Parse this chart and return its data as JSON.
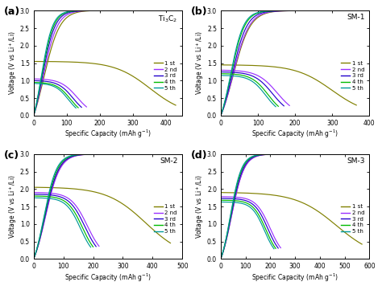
{
  "panels": [
    {
      "label": "(a)",
      "title": "Ti$_3$C$_2$",
      "xlim": [
        0,
        450
      ],
      "xticks": [
        0,
        100,
        200,
        300,
        400
      ],
      "cycles": [
        {
          "discharge_cap": 430,
          "discharge_v0": 1.55,
          "discharge_k": 8.0,
          "charge_cap": 170,
          "charge_k": 7.0
        },
        {
          "discharge_cap": 160,
          "discharge_v0": 1.05,
          "discharge_k": 6.5,
          "charge_cap": 160,
          "charge_k": 7.5
        },
        {
          "discharge_cap": 145,
          "discharge_v0": 1.0,
          "discharge_k": 6.5,
          "charge_cap": 145,
          "charge_k": 7.5
        },
        {
          "discharge_cap": 135,
          "discharge_v0": 0.95,
          "discharge_k": 6.5,
          "charge_cap": 135,
          "charge_k": 7.5
        },
        {
          "discharge_cap": 128,
          "discharge_v0": 0.92,
          "discharge_k": 6.5,
          "charge_cap": 128,
          "charge_k": 7.5
        }
      ]
    },
    {
      "label": "(b)",
      "title": "SM-1",
      "xlim": [
        0,
        400
      ],
      "xticks": [
        0,
        100,
        200,
        300,
        400
      ],
      "cycles": [
        {
          "discharge_cap": 365,
          "discharge_v0": 1.45,
          "discharge_k": 7.5,
          "charge_cap": 185,
          "charge_k": 8.0
        },
        {
          "discharge_cap": 185,
          "discharge_v0": 1.3,
          "discharge_k": 7.0,
          "charge_cap": 185,
          "charge_k": 8.5
        },
        {
          "discharge_cap": 170,
          "discharge_v0": 1.25,
          "discharge_k": 7.0,
          "charge_cap": 170,
          "charge_k": 8.5
        },
        {
          "discharge_cap": 155,
          "discharge_v0": 1.2,
          "discharge_k": 7.0,
          "charge_cap": 155,
          "charge_k": 8.5
        },
        {
          "discharge_cap": 148,
          "discharge_v0": 1.15,
          "discharge_k": 7.0,
          "charge_cap": 148,
          "charge_k": 8.5
        }
      ]
    },
    {
      "label": "(c)",
      "title": "SM-2",
      "xlim": [
        0,
        500
      ],
      "xticks": [
        0,
        100,
        200,
        300,
        400,
        500
      ],
      "cycles": [
        {
          "discharge_cap": 460,
          "discharge_v0": 2.05,
          "discharge_k": 7.0,
          "charge_cap": 215,
          "charge_k": 9.0
        },
        {
          "discharge_cap": 220,
          "discharge_v0": 1.9,
          "discharge_k": 8.0,
          "charge_cap": 220,
          "charge_k": 9.0
        },
        {
          "discharge_cap": 210,
          "discharge_v0": 1.85,
          "discharge_k": 8.0,
          "charge_cap": 210,
          "charge_k": 9.0
        },
        {
          "discharge_cap": 200,
          "discharge_v0": 1.8,
          "discharge_k": 8.0,
          "charge_cap": 200,
          "charge_k": 9.0
        },
        {
          "discharge_cap": 192,
          "discharge_v0": 1.75,
          "discharge_k": 8.0,
          "charge_cap": 192,
          "charge_k": 9.0
        }
      ]
    },
    {
      "label": "(d)",
      "title": "SM-3",
      "xlim": [
        0,
        600
      ],
      "xticks": [
        0,
        100,
        200,
        300,
        400,
        500,
        600
      ],
      "cycles": [
        {
          "discharge_cap": 570,
          "discharge_v0": 1.9,
          "discharge_k": 7.0,
          "charge_cap": 240,
          "charge_k": 9.5
        },
        {
          "discharge_cap": 242,
          "discharge_v0": 1.78,
          "discharge_k": 8.5,
          "charge_cap": 242,
          "charge_k": 9.5
        },
        {
          "discharge_cap": 232,
          "discharge_v0": 1.73,
          "discharge_k": 8.5,
          "charge_cap": 232,
          "charge_k": 9.5
        },
        {
          "discharge_cap": 222,
          "discharge_v0": 1.68,
          "discharge_k": 8.5,
          "charge_cap": 222,
          "charge_k": 9.5
        },
        {
          "discharge_cap": 215,
          "discharge_v0": 1.63,
          "discharge_k": 8.5,
          "charge_cap": 215,
          "charge_k": 9.5
        }
      ]
    }
  ],
  "colors": [
    "#808000",
    "#9B30FF",
    "#2200CC",
    "#00BB00",
    "#009999"
  ],
  "cycle_labels": [
    "1 st",
    "2 nd",
    "3 rd",
    "4 th",
    "5 th"
  ],
  "ylabel": "Voltage (V vs Li$^+$/Li)",
  "xlabel": "Specific Capacity (mAh g$^{-1}$)",
  "ylim": [
    0.0,
    3.0
  ],
  "yticks": [
    0.0,
    0.5,
    1.0,
    1.5,
    2.0,
    2.5,
    3.0
  ]
}
